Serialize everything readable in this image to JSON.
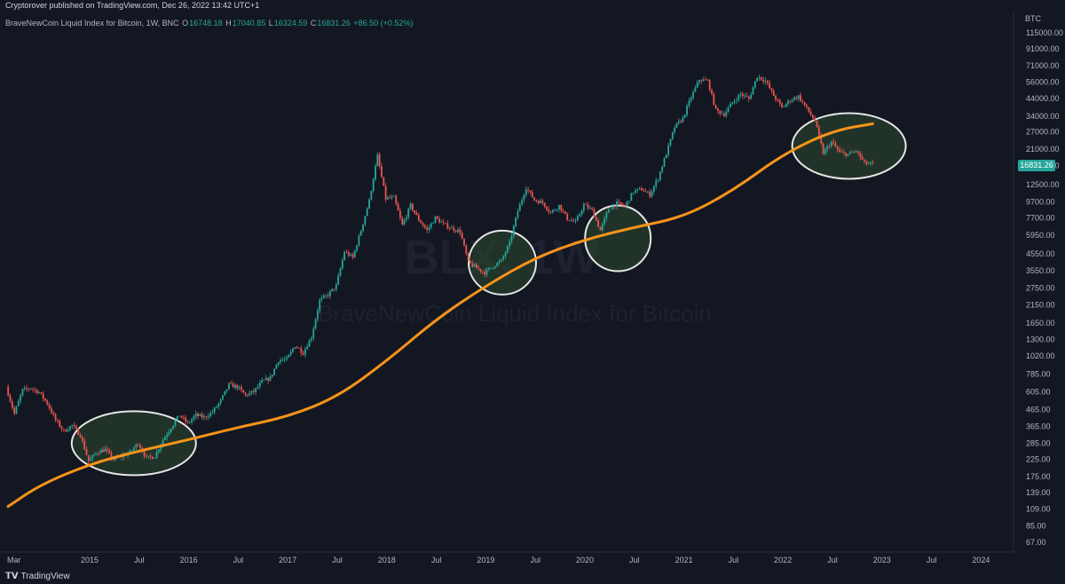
{
  "header": {
    "published": "Cryptorover published on TradingView.com, Dec 26, 2022 13:42 UTC+1",
    "symbol": "BraveNewCoin Liquid Index for Bitcoin, 1W, BNC",
    "open_label": "O",
    "open": "16748.18",
    "high_label": "H",
    "high": "17040.85",
    "low_label": "L",
    "low": "16324.59",
    "close_label": "C",
    "close": "16831.26",
    "change": "+86.50 (+0.52%)"
  },
  "watermark": {
    "ticker": "BLX, 1W",
    "name": "BraveNewCoin Liquid Index for Bitcoin"
  },
  "price_scale": {
    "unit": "BTC",
    "last_price": "16831.26",
    "colors": {
      "up": "#26a69a",
      "down": "#ef5350",
      "ma": "#f7931a",
      "circle": "#e6e6e6",
      "circle_fill": "#2e4a2e"
    }
  },
  "footer": {
    "brand": "TradingView"
  },
  "chart_data": {
    "type": "candlestick",
    "scale": "log",
    "y_ticks": [
      "115000.00",
      "91000.00",
      "71000.00",
      "56000.00",
      "44000.00",
      "34000.00",
      "27000.00",
      "21000.00",
      "16500.00",
      "12500.00",
      "9700.00",
      "7700.00",
      "5950.00",
      "4550.00",
      "3550.00",
      "2750.00",
      "2150.00",
      "1650.00",
      "1300.00",
      "1020.00",
      "785.00",
      "605.00",
      "465.00",
      "365.00",
      "285.00",
      "225.00",
      "175.00",
      "139.00",
      "109.00",
      "85.00",
      "67.00"
    ],
    "x_ticks": [
      "Mar",
      "2015",
      "Jul",
      "2016",
      "Jul",
      "2017",
      "Jul",
      "2018",
      "Jul",
      "2019",
      "Jul",
      "2020",
      "Jul",
      "2021",
      "Jul",
      "2022",
      "Jul",
      "2023",
      "Jul",
      "2024"
    ],
    "price_path": [
      [
        "2014-03",
        650
      ],
      [
        "2014-04",
        440
      ],
      [
        "2014-05",
        620
      ],
      [
        "2014-06",
        640
      ],
      [
        "2014-07",
        600
      ],
      [
        "2014-08",
        510
      ],
      [
        "2014-09",
        400
      ],
      [
        "2014-10",
        340
      ],
      [
        "2014-11",
        370
      ],
      [
        "2014-12",
        320
      ],
      [
        "2015-01",
        220
      ],
      [
        "2015-02",
        250
      ],
      [
        "2015-03",
        260
      ],
      [
        "2015-04",
        225
      ],
      [
        "2015-05",
        235
      ],
      [
        "2015-06",
        250
      ],
      [
        "2015-07",
        285
      ],
      [
        "2015-08",
        230
      ],
      [
        "2015-09",
        235
      ],
      [
        "2015-10",
        300
      ],
      [
        "2015-11",
        360
      ],
      [
        "2015-12",
        430
      ],
      [
        "2016-01",
        380
      ],
      [
        "2016-02",
        430
      ],
      [
        "2016-03",
        415
      ],
      [
        "2016-04",
        450
      ],
      [
        "2016-05",
        530
      ],
      [
        "2016-06",
        670
      ],
      [
        "2016-07",
        650
      ],
      [
        "2016-08",
        575
      ],
      [
        "2016-09",
        605
      ],
      [
        "2016-10",
        700
      ],
      [
        "2016-11",
        740
      ],
      [
        "2016-12",
        960
      ],
      [
        "2017-01",
        970
      ],
      [
        "2017-02",
        1190
      ],
      [
        "2017-03",
        1070
      ],
      [
        "2017-04",
        1350
      ],
      [
        "2017-05",
        2300
      ],
      [
        "2017-06",
        2500
      ],
      [
        "2017-07",
        2850
      ],
      [
        "2017-08",
        4700
      ],
      [
        "2017-09",
        4300
      ],
      [
        "2017-10",
        6400
      ],
      [
        "2017-11",
        9900
      ],
      [
        "2017-12",
        19000
      ],
      [
        "2018-01",
        10200
      ],
      [
        "2018-02",
        10300
      ],
      [
        "2018-03",
        6900
      ],
      [
        "2018-04",
        9200
      ],
      [
        "2018-05",
        7500
      ],
      [
        "2018-06",
        6400
      ],
      [
        "2018-07",
        7700
      ],
      [
        "2018-08",
        7000
      ],
      [
        "2018-09",
        6600
      ],
      [
        "2018-10",
        6300
      ],
      [
        "2018-11",
        4000
      ],
      [
        "2018-12",
        3700
      ],
      [
        "2019-01",
        3450
      ],
      [
        "2019-02",
        3800
      ],
      [
        "2019-03",
        4100
      ],
      [
        "2019-04",
        5300
      ],
      [
        "2019-05",
        8500
      ],
      [
        "2019-06",
        12000
      ],
      [
        "2019-07",
        10000
      ],
      [
        "2019-08",
        9600
      ],
      [
        "2019-09",
        8300
      ],
      [
        "2019-10",
        9200
      ],
      [
        "2019-11",
        7600
      ],
      [
        "2019-12",
        7200
      ],
      [
        "2020-01",
        9300
      ],
      [
        "2020-02",
        8600
      ],
      [
        "2020-03",
        6400
      ],
      [
        "2020-04",
        8800
      ],
      [
        "2020-05",
        9500
      ],
      [
        "2020-06",
        9100
      ],
      [
        "2020-07",
        11300
      ],
      [
        "2020-08",
        11700
      ],
      [
        "2020-09",
        10800
      ],
      [
        "2020-10",
        13800
      ],
      [
        "2020-11",
        19700
      ],
      [
        "2020-12",
        29000
      ],
      [
        "2021-01",
        33000
      ],
      [
        "2021-02",
        45000
      ],
      [
        "2021-03",
        58000
      ],
      [
        "2021-04",
        57000
      ],
      [
        "2021-05",
        37000
      ],
      [
        "2021-06",
        35000
      ],
      [
        "2021-07",
        41500
      ],
      [
        "2021-08",
        47000
      ],
      [
        "2021-09",
        43800
      ],
      [
        "2021-10",
        61000
      ],
      [
        "2021-11",
        57000
      ],
      [
        "2021-12",
        46000
      ],
      [
        "2022-01",
        38500
      ],
      [
        "2022-02",
        43000
      ],
      [
        "2022-03",
        45500
      ],
      [
        "2022-04",
        38000
      ],
      [
        "2022-05",
        31800
      ],
      [
        "2022-06",
        19800
      ],
      [
        "2022-07",
        23300
      ],
      [
        "2022-08",
        20000
      ],
      [
        "2022-09",
        19400
      ],
      [
        "2022-10",
        20500
      ],
      [
        "2022-11",
        17100
      ],
      [
        "2022-12",
        16831
      ]
    ],
    "moving_average": [
      [
        "2014-03",
        112
      ],
      [
        "2014-07",
        155
      ],
      [
        "2015-01",
        210
      ],
      [
        "2015-07",
        255
      ],
      [
        "2016-01",
        300
      ],
      [
        "2016-07",
        360
      ],
      [
        "2017-01",
        420
      ],
      [
        "2017-07",
        560
      ],
      [
        "2018-01",
        950
      ],
      [
        "2018-07",
        1750
      ],
      [
        "2019-01",
        2850
      ],
      [
        "2019-07",
        4300
      ],
      [
        "2020-01",
        5600
      ],
      [
        "2020-07",
        6700
      ],
      [
        "2021-01",
        7800
      ],
      [
        "2021-07",
        11500
      ],
      [
        "2022-01",
        19500
      ],
      [
        "2022-07",
        27500
      ],
      [
        "2022-12",
        30500
      ]
    ],
    "highlights": [
      {
        "center": [
          "2015-07",
          285
        ]
      },
      {
        "center": [
          "2019-03",
          4000
        ]
      },
      {
        "center": [
          "2020-05",
          5700
        ]
      },
      {
        "center": [
          "2022-09",
          22000
        ]
      }
    ]
  }
}
